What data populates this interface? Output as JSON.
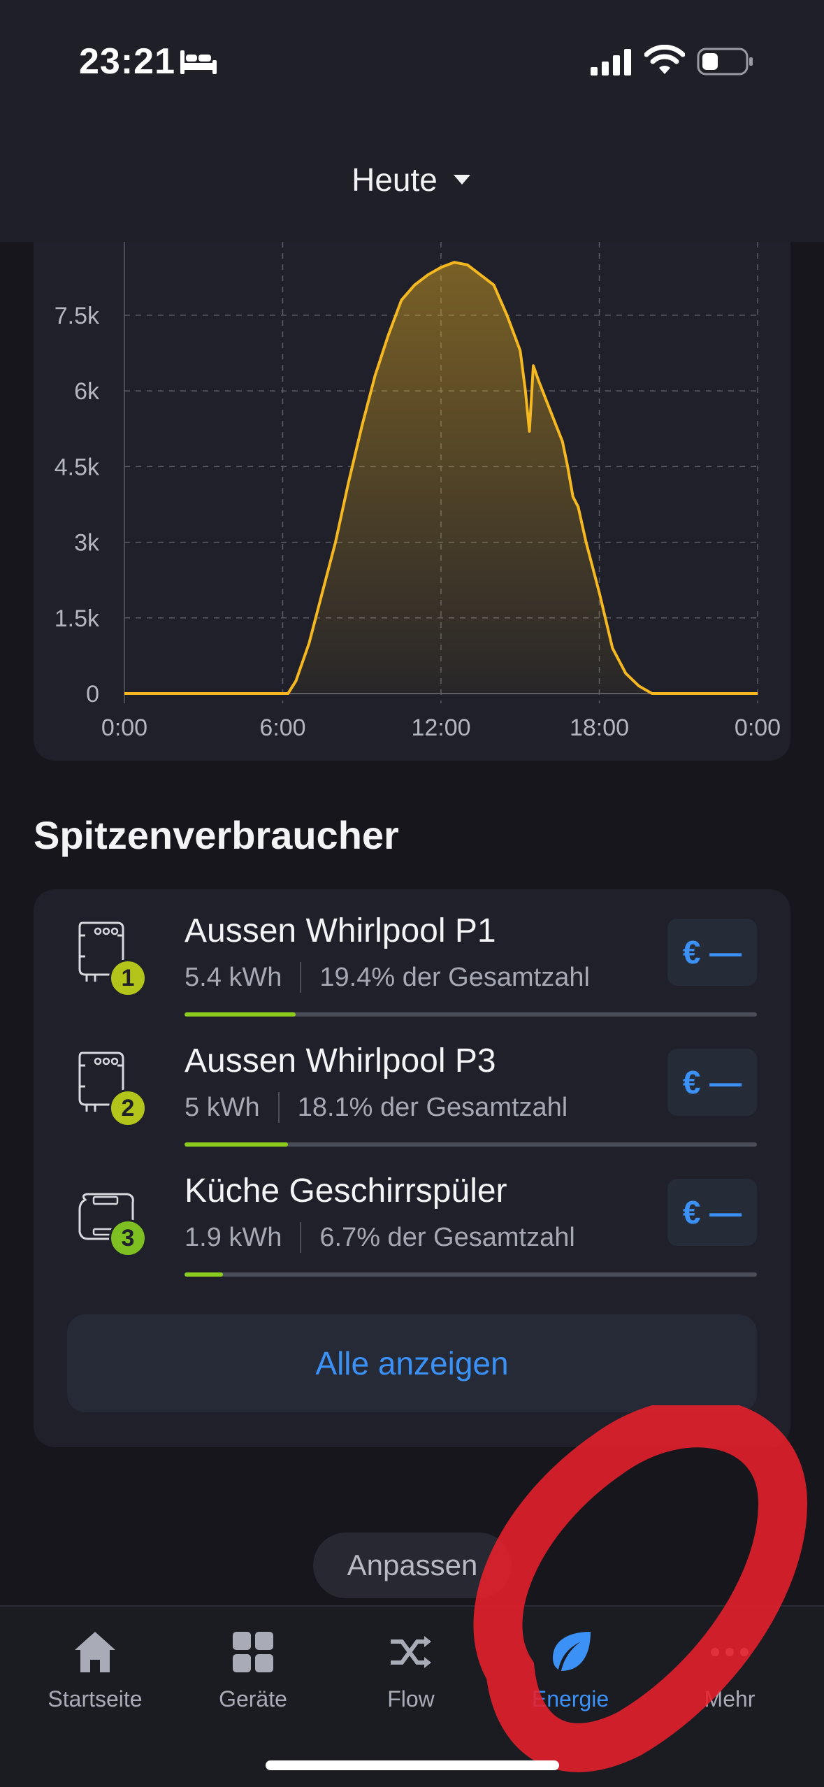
{
  "status_bar": {
    "time": "23:21",
    "icons": [
      "bed-icon",
      "signal-icon",
      "wifi-icon",
      "battery-icon"
    ]
  },
  "header": {
    "period_label": "Heute"
  },
  "chart_data": {
    "type": "area",
    "title": "",
    "xlabel": "",
    "ylabel": "",
    "x_ticks": [
      "0:00",
      "6:00",
      "12:00",
      "18:00",
      "0:00"
    ],
    "y_ticks": [
      "0",
      "1.5k",
      "3k",
      "4.5k",
      "6k",
      "7.5k"
    ],
    "y_tick_values": [
      0,
      1500,
      3000,
      4500,
      6000,
      7500
    ],
    "xlim": [
      0,
      24
    ],
    "ylim": [
      0,
      8400
    ],
    "grid": true,
    "color": "#f5b820",
    "series": [
      {
        "x": [
          0,
          6.2,
          6.5,
          7.0,
          7.5,
          8.0,
          8.5,
          9.0,
          9.5,
          10.0,
          10.5,
          11.0,
          11.5,
          12.0,
          12.5,
          13.0,
          13.5,
          14.0,
          14.5,
          15.0,
          15.2,
          15.35,
          15.5,
          15.7,
          16.0,
          16.3,
          16.6,
          16.8,
          17.0,
          17.2,
          17.5,
          18.0,
          18.5,
          19.0,
          19.5,
          20.0,
          20.5,
          24
        ],
        "y": [
          0,
          0,
          250,
          1000,
          2000,
          3000,
          4200,
          5300,
          6300,
          7100,
          7800,
          8100,
          8300,
          8450,
          8550,
          8500,
          8300,
          8100,
          7500,
          6800,
          6000,
          5200,
          6500,
          6200,
          5800,
          5400,
          5000,
          4500,
          3900,
          3700,
          3000,
          2000,
          900,
          400,
          150,
          0,
          0,
          0
        ]
      }
    ]
  },
  "section_title": "Spitzenverbraucher",
  "consumers": [
    {
      "rank": "1",
      "name": "Aussen Whirlpool P1",
      "energy": "5.4 kWh",
      "share": "19.4% der Gesamtzahl",
      "fraction": 0.194,
      "icon": "relay-module-icon",
      "cost": "€ —",
      "badge_color": "#b3c51a"
    },
    {
      "rank": "2",
      "name": "Aussen Whirlpool P3",
      "energy": "5 kWh",
      "share": "18.1% der Gesamtzahl",
      "fraction": 0.181,
      "icon": "relay-module-icon",
      "cost": "€ —",
      "badge_color": "#b3c51a"
    },
    {
      "rank": "3",
      "name": "Küche Geschirrspüler",
      "energy": "1.9 kWh",
      "share": "6.7% der Gesamtzahl",
      "fraction": 0.067,
      "icon": "din-meter-icon",
      "cost": "€ —",
      "badge_color": "#7ec021"
    }
  ],
  "show_all_label": "Alle anzeigen",
  "customize_label": "Anpassen",
  "tab_bar": {
    "items": [
      {
        "label": "Startseite",
        "icon": "home-icon"
      },
      {
        "label": "Geräte",
        "icon": "grid-icon"
      },
      {
        "label": "Flow",
        "icon": "shuffle-icon"
      },
      {
        "label": "Energie",
        "icon": "leaf-icon"
      },
      {
        "label": "Mehr",
        "icon": "more-icon"
      }
    ],
    "active_index": 3,
    "active_color": "#3b91f5"
  },
  "colors": {
    "accent": "#3b91f5",
    "chart_line": "#f5b820",
    "progress": "#8ccc1c",
    "annotation": "#e8202c"
  }
}
